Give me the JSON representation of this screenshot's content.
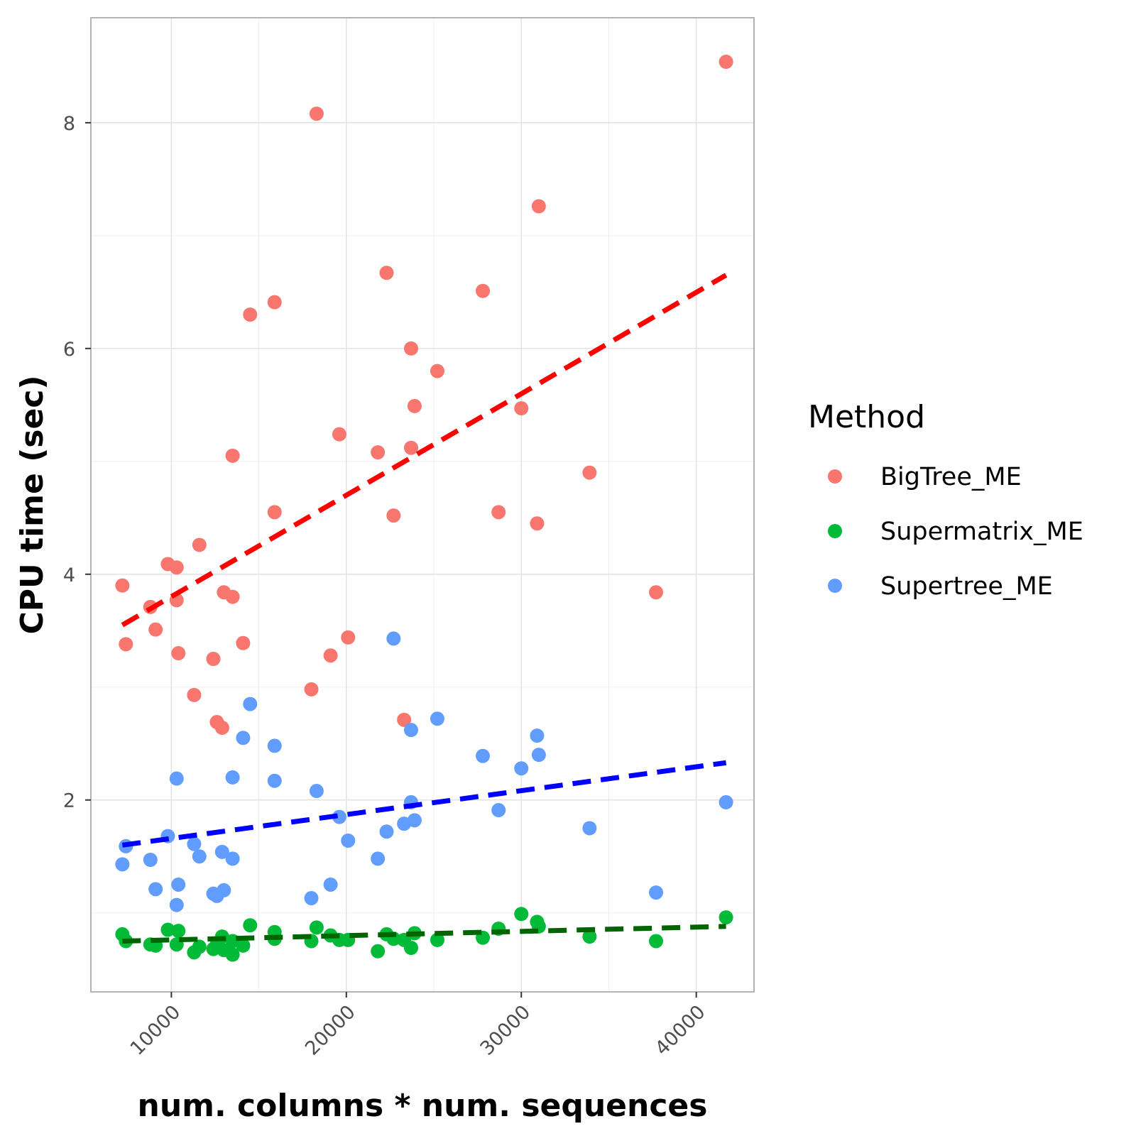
{
  "chart_data": {
    "type": "scatter",
    "xlabel": "num. columns * num. sequences",
    "ylabel": "CPU time (sec)",
    "xlim": [
      5400,
      43300
    ],
    "ylim": [
      0.3,
      8.93
    ],
    "x_ticks": [
      10000,
      20000,
      30000,
      40000
    ],
    "y_ticks": [
      2,
      4,
      6,
      8
    ],
    "grid": true,
    "legend": {
      "title": "Method",
      "placement": "right"
    },
    "series": [
      {
        "name": "BigTree_ME",
        "color": "#F8766D",
        "trend_color": "#FF0000",
        "trend": {
          "x": [
            7200,
            41700
          ],
          "y": [
            3.55,
            6.65
          ]
        },
        "points": [
          [
            7200,
            3.9
          ],
          [
            7400,
            3.38
          ],
          [
            8800,
            3.71
          ],
          [
            9100,
            3.51
          ],
          [
            9800,
            4.09
          ],
          [
            10300,
            4.06
          ],
          [
            10300,
            3.77
          ],
          [
            10400,
            3.3
          ],
          [
            11300,
            2.93
          ],
          [
            11600,
            4.26
          ],
          [
            12400,
            3.25
          ],
          [
            12600,
            2.69
          ],
          [
            12900,
            2.64
          ],
          [
            13000,
            3.84
          ],
          [
            13500,
            3.8
          ],
          [
            13500,
            5.05
          ],
          [
            14100,
            3.39
          ],
          [
            14500,
            6.3
          ],
          [
            15900,
            6.41
          ],
          [
            15900,
            4.55
          ],
          [
            18000,
            2.98
          ],
          [
            18300,
            8.08
          ],
          [
            19100,
            3.28
          ],
          [
            19600,
            5.24
          ],
          [
            20100,
            3.44
          ],
          [
            21800,
            5.08
          ],
          [
            22300,
            6.67
          ],
          [
            22700,
            4.52
          ],
          [
            23300,
            2.71
          ],
          [
            23700,
            6.0
          ],
          [
            23700,
            5.12
          ],
          [
            23900,
            5.49
          ],
          [
            25200,
            5.8
          ],
          [
            27800,
            6.51
          ],
          [
            28700,
            4.55
          ],
          [
            30000,
            5.47
          ],
          [
            30900,
            4.45
          ],
          [
            31000,
            7.26
          ],
          [
            33900,
            4.9
          ],
          [
            37700,
            3.84
          ],
          [
            41700,
            8.54
          ]
        ]
      },
      {
        "name": "Supermatrix_ME",
        "color": "#00BA38",
        "trend_color": "#006400",
        "trend": {
          "x": [
            7200,
            41700
          ],
          "y": [
            0.75,
            0.88
          ]
        },
        "points": [
          [
            7200,
            0.81
          ],
          [
            7400,
            0.75
          ],
          [
            8800,
            0.72
          ],
          [
            9100,
            0.71
          ],
          [
            9800,
            0.85
          ],
          [
            10300,
            0.72
          ],
          [
            10400,
            0.84
          ],
          [
            11300,
            0.65
          ],
          [
            11600,
            0.7
          ],
          [
            12400,
            0.68
          ],
          [
            12600,
            0.72
          ],
          [
            12900,
            0.79
          ],
          [
            13000,
            0.67
          ],
          [
            13500,
            0.75
          ],
          [
            13500,
            0.63
          ],
          [
            14100,
            0.71
          ],
          [
            14500,
            0.89
          ],
          [
            15900,
            0.83
          ],
          [
            15900,
            0.77
          ],
          [
            18000,
            0.75
          ],
          [
            18300,
            0.87
          ],
          [
            19100,
            0.8
          ],
          [
            19600,
            0.76
          ],
          [
            20100,
            0.76
          ],
          [
            21800,
            0.66
          ],
          [
            22300,
            0.81
          ],
          [
            22700,
            0.77
          ],
          [
            23300,
            0.76
          ],
          [
            23700,
            0.69
          ],
          [
            23900,
            0.82
          ],
          [
            25200,
            0.76
          ],
          [
            27800,
            0.78
          ],
          [
            28700,
            0.86
          ],
          [
            30000,
            0.99
          ],
          [
            30900,
            0.92
          ],
          [
            31000,
            0.88
          ],
          [
            33900,
            0.79
          ],
          [
            37700,
            0.75
          ],
          [
            41700,
            0.96
          ]
        ]
      },
      {
        "name": "Supertree_ME",
        "color": "#619CFF",
        "trend_color": "#0000FF",
        "trend": {
          "x": [
            7200,
            41700
          ],
          "y": [
            1.6,
            2.33
          ]
        },
        "points": [
          [
            7200,
            1.43
          ],
          [
            7400,
            1.59
          ],
          [
            8800,
            1.47
          ],
          [
            9100,
            1.21
          ],
          [
            9800,
            1.68
          ],
          [
            10300,
            2.19
          ],
          [
            10300,
            1.07
          ],
          [
            10400,
            1.25
          ],
          [
            11300,
            1.61
          ],
          [
            11600,
            1.5
          ],
          [
            12400,
            1.17
          ],
          [
            12600,
            1.15
          ],
          [
            12900,
            1.54
          ],
          [
            13000,
            1.2
          ],
          [
            13500,
            1.48
          ],
          [
            13500,
            2.2
          ],
          [
            14100,
            2.55
          ],
          [
            14500,
            2.85
          ],
          [
            15900,
            2.48
          ],
          [
            15900,
            2.17
          ],
          [
            18000,
            1.13
          ],
          [
            18300,
            2.08
          ],
          [
            19100,
            1.25
          ],
          [
            19600,
            1.85
          ],
          [
            20100,
            1.64
          ],
          [
            21800,
            1.48
          ],
          [
            22300,
            1.72
          ],
          [
            22700,
            3.43
          ],
          [
            23300,
            1.79
          ],
          [
            23700,
            1.98
          ],
          [
            23700,
            2.62
          ],
          [
            23900,
            1.82
          ],
          [
            25200,
            2.72
          ],
          [
            27800,
            2.39
          ],
          [
            28700,
            1.91
          ],
          [
            30000,
            2.28
          ],
          [
            30900,
            2.57
          ],
          [
            31000,
            2.4
          ],
          [
            33900,
            1.75
          ],
          [
            37700,
            1.18
          ],
          [
            41700,
            1.98
          ]
        ]
      }
    ]
  }
}
